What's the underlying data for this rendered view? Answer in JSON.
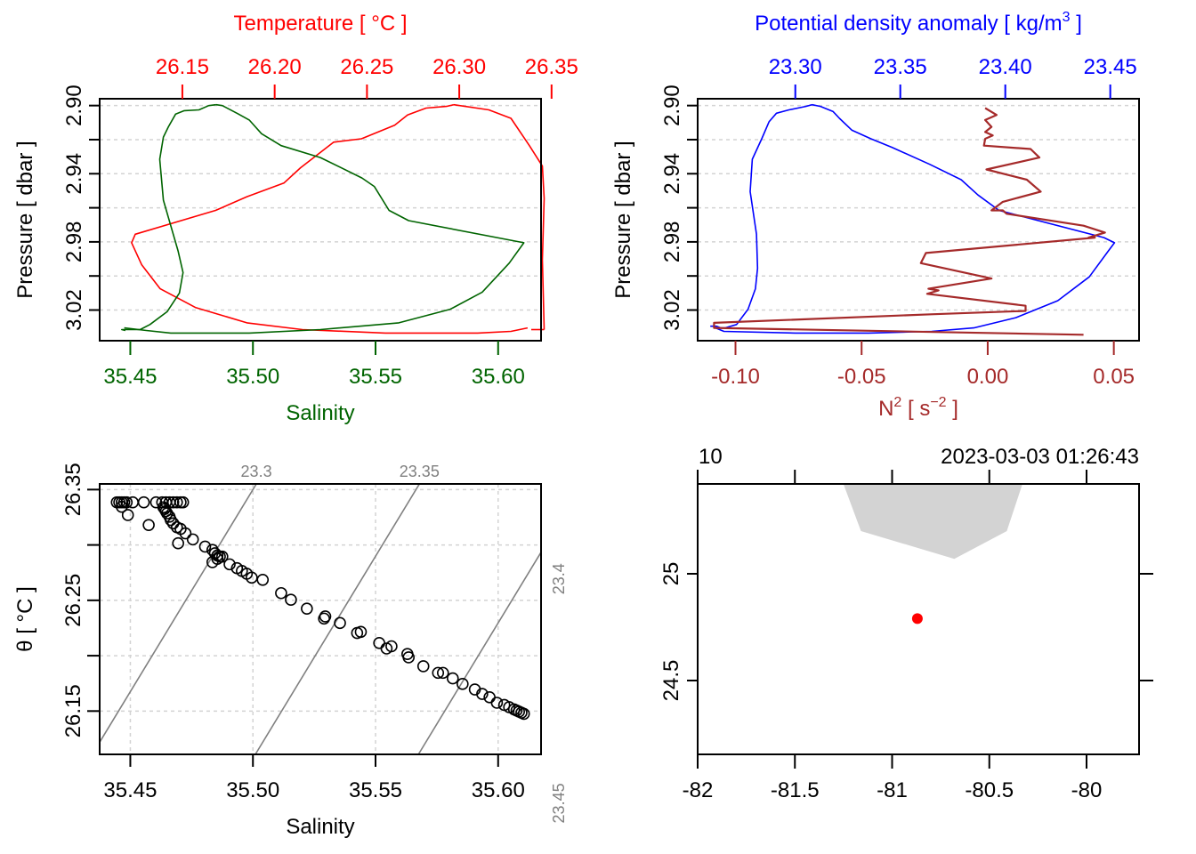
{
  "chart_data": [
    {
      "id": "profile_TS",
      "type": "line",
      "title": "",
      "top_axis_label": "Temperature [ °C ]",
      "bottom_axis_label": "Salinity",
      "ylabel": "Pressure [ dbar ]",
      "y_reversed": true,
      "ylim": [
        2.896,
        3.038
      ],
      "y_ticks": [
        "2.90",
        "2.94",
        "2.98",
        "3.02"
      ],
      "y_minor_ticks": [
        2.92,
        2.96,
        3.0
      ],
      "grid": true,
      "x_bottom": {
        "label": "Salinity",
        "color": "#006400",
        "ticks": [
          "35.45",
          "35.50",
          "35.55",
          "35.60"
        ],
        "lim": [
          35.4375,
          35.6175
        ]
      },
      "x_top": {
        "label": "Temperature [ °C ]",
        "color": "#ff0000",
        "ticks": [
          "26.15",
          "26.20",
          "26.25",
          "26.30",
          "26.35"
        ],
        "lim": [
          26.1052,
          26.3443
        ]
      },
      "series": [
        {
          "name": "Temperature",
          "axis": "top",
          "color": "#ff0000",
          "points": [
            [
              26.297,
              2.8995
            ],
            [
              26.293,
              2.9005
            ],
            [
              26.282,
              2.9015
            ],
            [
              26.272,
              2.9055
            ],
            [
              26.265,
              2.9115
            ],
            [
              26.247,
              2.9195
            ],
            [
              26.232,
              2.9215
            ],
            [
              26.214,
              2.9365
            ],
            [
              26.205,
              2.9455
            ],
            [
              26.185,
              2.9535
            ],
            [
              26.168,
              2.9615
            ],
            [
              26.1245,
              2.9755
            ],
            [
              26.1225,
              2.9805
            ],
            [
              26.128,
              2.9935
            ],
            [
              26.138,
              3.0075
            ],
            [
              26.157,
              3.0185
            ],
            [
              26.185,
              3.0275
            ],
            [
              26.215,
              3.0315
            ],
            [
              26.26,
              3.0335
            ],
            [
              26.31,
              3.0335
            ],
            [
              26.328,
              3.0325
            ],
            [
              26.337,
              3.0305
            ]
          ],
          "points_extra": [
            [
              26.316,
              2.9025
            ],
            [
              26.328,
              2.9075
            ],
            [
              26.338,
              2.9235
            ],
            [
              26.345,
              2.9355
            ],
            [
              26.346,
              2.9545
            ],
            [
              26.345,
              2.9905
            ],
            [
              26.346,
              3.0315
            ]
          ],
          "end_marker": [
            [
              26.339,
              3.0315
            ],
            [
              26.346,
              3.0315
            ]
          ]
        },
        {
          "name": "Salinity",
          "axis": "bottom",
          "color": "#006400",
          "points": [
            [
              35.485,
              2.8995
            ],
            [
              35.482,
              2.9
            ],
            [
              35.478,
              2.9025
            ],
            [
              35.472,
              2.903
            ],
            [
              35.4685,
              2.905
            ],
            [
              35.4655,
              2.9125
            ],
            [
              35.4635,
              2.9185
            ],
            [
              35.462,
              2.9315
            ],
            [
              35.4635,
              2.9555
            ],
            [
              35.4695,
              2.9855
            ],
            [
              35.4715,
              2.998
            ],
            [
              35.47,
              3.01
            ],
            [
              35.465,
              3.021
            ],
            [
              35.458,
              3.0285
            ],
            [
              35.454,
              3.0315
            ],
            [
              35.4465,
              3.0315
            ],
            [
              35.448,
              3.032
            ]
          ],
          "points_extra": [
            [
              35.4875,
              2.9
            ],
            [
              35.4935,
              2.9045
            ],
            [
              35.4985,
              2.9085
            ],
            [
              35.5035,
              2.9165
            ],
            [
              35.5115,
              2.9235
            ],
            [
              35.5275,
              2.9305
            ],
            [
              35.5445,
              2.9425
            ],
            [
              35.5495,
              2.9475
            ],
            [
              35.5555,
              2.9615
            ],
            [
              35.5635,
              2.9675
            ],
            [
              35.6105,
              2.9805
            ],
            [
              35.6045,
              2.9925
            ],
            [
              35.5935,
              3.0095
            ],
            [
              35.5805,
              3.0195
            ],
            [
              35.5595,
              3.0275
            ],
            [
              35.5275,
              3.0315
            ],
            [
              35.4985,
              3.0335
            ],
            [
              35.4665,
              3.0335
            ],
            [
              35.4565,
              3.032
            ],
            [
              35.4475,
              3.0305
            ]
          ]
        }
      ]
    },
    {
      "id": "profile_density_N2",
      "type": "line",
      "title": "",
      "top_axis_label": "Potential density anomaly [ kg/m^3 ]",
      "bottom_axis_label": "N^2 [ s^-2 ]",
      "ylabel": "Pressure [ dbar ]",
      "y_reversed": true,
      "ylim": [
        2.896,
        3.038
      ],
      "y_ticks": [
        "2.90",
        "2.94",
        "2.98",
        "3.02"
      ],
      "grid": true,
      "x_bottom": {
        "label": "N2 [ s-2 ]",
        "color": "#a52a2a",
        "ticks": [
          "-0.10",
          "-0.05",
          "0.00",
          "0.05"
        ],
        "lim": [
          -0.115,
          0.06
        ]
      },
      "x_top": {
        "label": "Potential density anomaly [ kg/m3 ]",
        "color": "#0000ff",
        "ticks": [
          "23.30",
          "23.35",
          "23.40",
          "23.45"
        ],
        "lim": [
          23.2535,
          23.4637
        ]
      },
      "series": [
        {
          "name": "Potential density anomaly",
          "axis": "top",
          "color": "#0000ff",
          "points": [
            [
              23.308,
              2.8995
            ],
            [
              23.305,
              2.9005
            ],
            [
              23.297,
              2.9025
            ],
            [
              23.291,
              2.9045
            ],
            [
              23.2875,
              2.9095
            ],
            [
              23.284,
              2.9195
            ],
            [
              23.2795,
              2.9315
            ],
            [
              23.2785,
              2.9505
            ],
            [
              23.2815,
              2.9755
            ],
            [
              23.282,
              2.9955
            ],
            [
              23.281,
              3.0075
            ],
            [
              23.2775,
              3.0195
            ],
            [
              23.272,
              3.0285
            ],
            [
              23.2665,
              3.0305
            ],
            [
              23.2645,
              3.0305
            ],
            [
              23.2625,
              3.0295
            ],
            [
              23.2595,
              3.0295
            ]
          ],
          "points_extra": [
            [
              23.312,
              2.9005
            ],
            [
              23.318,
              2.9035
            ],
            [
              23.321,
              2.9075
            ],
            [
              23.327,
              2.9145
            ],
            [
              23.336,
              2.9195
            ],
            [
              23.346,
              2.9245
            ],
            [
              23.364,
              2.9345
            ],
            [
              23.379,
              2.9435
            ],
            [
              23.387,
              2.9525
            ],
            [
              23.397,
              2.9615
            ],
            [
              23.447,
              2.9775
            ],
            [
              23.452,
              2.9805
            ],
            [
              23.449,
              2.9855
            ],
            [
              23.44,
              3.0005
            ],
            [
              23.425,
              3.0145
            ],
            [
              23.405,
              3.0245
            ],
            [
              23.385,
              3.0305
            ],
            [
              23.365,
              3.0325
            ],
            [
              23.335,
              3.0335
            ],
            [
              23.3,
              3.0335
            ],
            [
              23.266,
              3.0325
            ],
            [
              23.262,
              3.0305
            ]
          ]
        },
        {
          "name": "N2",
          "axis": "bottom",
          "color": "#a52a2a",
          "points": [
            [
              -0.001,
              2.9015
            ],
            [
              0.0035,
              2.9055
            ],
            [
              -0.001,
              2.9085
            ],
            [
              0.0015,
              2.9125
            ],
            [
              -0.001,
              2.9155
            ],
            [
              0.002,
              2.9175
            ],
            [
              -0.001,
              2.9195
            ],
            [
              -0.0015,
              2.9235
            ],
            [
              0.017,
              2.9255
            ],
            [
              0.0205,
              2.9305
            ],
            [
              -0.0005,
              2.9375
            ],
            [
              0.0155,
              2.9435
            ],
            [
              0.021,
              2.9505
            ],
            [
              0.006,
              2.9565
            ],
            [
              0.0015,
              2.9615
            ],
            [
              0.0025,
              2.9615
            ],
            [
              0.006,
              2.9615
            ],
            [
              0.0075,
              2.9635
            ],
            [
              0.038,
              2.9705
            ],
            [
              0.0465,
              2.9745
            ],
            [
              0.04,
              2.9775
            ],
            [
              0.0425,
              2.9775
            ],
            [
              -0.0245,
              2.9865
            ],
            [
              -0.0265,
              2.9925
            ],
            [
              0.0015,
              3.0015
            ],
            [
              -0.0235,
              3.0075
            ],
            [
              -0.0195,
              3.0085
            ],
            [
              -0.024,
              3.0105
            ],
            [
              0.015,
              3.0175
            ],
            [
              0.015,
              3.0205
            ],
            [
              -0.0225,
              3.0225
            ],
            [
              -0.1085,
              3.0275
            ],
            [
              -0.1085,
              3.0305
            ],
            [
              0.038,
              3.0345
            ]
          ]
        }
      ]
    },
    {
      "id": "TS_diagram",
      "type": "scatter",
      "title": "",
      "xlabel": "Salinity",
      "ylabel": "θ [ °C ]",
      "xlim": [
        35.4375,
        35.6175
      ],
      "ylim": [
        26.1109,
        26.3551
      ],
      "x_ticks": [
        "35.45",
        "35.50",
        "35.55",
        "35.60"
      ],
      "y_ticks": [
        "26.15",
        "26.25",
        "26.35"
      ],
      "y_minor_ticks": [
        26.2,
        26.3
      ],
      "grid": true,
      "isopycnals": [
        {
          "label": "23.3",
          "value": 23.3,
          "label_side": "top"
        },
        {
          "label": "23.35",
          "value": 23.35,
          "label_side": "top"
        },
        {
          "label": "23.4",
          "value": 23.4,
          "label_side": "right"
        },
        {
          "label": "23.45",
          "value": 23.45,
          "label_side": "right"
        }
      ],
      "isopycnal_color": "#808080",
      "points": [
        [
          35.4445,
          26.3385
        ],
        [
          35.4455,
          26.3385
        ],
        [
          35.4465,
          26.3385
        ],
        [
          35.4475,
          26.3385
        ],
        [
          35.4485,
          26.3385
        ],
        [
          35.451,
          26.3385
        ],
        [
          35.4555,
          26.3385
        ],
        [
          35.4605,
          26.3385
        ],
        [
          35.463,
          26.3385
        ],
        [
          35.4645,
          26.3385
        ],
        [
          35.466,
          26.3385
        ],
        [
          35.4675,
          26.3385
        ],
        [
          35.469,
          26.3385
        ],
        [
          35.4705,
          26.3385
        ],
        [
          35.4715,
          26.3385
        ],
        [
          35.4465,
          26.3345
        ],
        [
          35.449,
          26.327
        ],
        [
          35.4575,
          26.318
        ],
        [
          35.4635,
          26.334
        ],
        [
          35.464,
          26.3325
        ],
        [
          35.4645,
          26.3305
        ],
        [
          35.465,
          26.3285
        ],
        [
          35.466,
          26.3255
        ],
        [
          35.4665,
          26.3225
        ],
        [
          35.4675,
          26.3195
        ],
        [
          35.469,
          26.316
        ],
        [
          35.4705,
          26.3145
        ],
        [
          35.4725,
          26.3105
        ],
        [
          35.4755,
          26.305
        ],
        [
          35.4695,
          26.3015
        ],
        [
          35.4805,
          26.2985
        ],
        [
          35.4835,
          26.2955
        ],
        [
          35.4845,
          26.2925
        ],
        [
          35.4855,
          26.2905
        ],
        [
          35.4865,
          26.2895
        ],
        [
          35.4875,
          26.2895
        ],
        [
          35.4855,
          26.2875
        ],
        [
          35.4835,
          26.2845
        ],
        [
          35.4905,
          26.2825
        ],
        [
          35.4935,
          26.279
        ],
        [
          35.4955,
          26.2765
        ],
        [
          35.4975,
          26.274
        ],
        [
          35.4995,
          26.2705
        ],
        [
          35.504,
          26.2685
        ],
        [
          35.5115,
          26.2565
        ],
        [
          35.5155,
          26.2505
        ],
        [
          35.522,
          26.2425
        ],
        [
          35.529,
          26.2335
        ],
        [
          35.5295,
          26.2355
        ],
        [
          35.5355,
          26.2295
        ],
        [
          35.5425,
          26.2205
        ],
        [
          35.544,
          26.2215
        ],
        [
          35.5515,
          26.2115
        ],
        [
          35.5545,
          26.2065
        ],
        [
          35.5565,
          26.2085
        ],
        [
          35.563,
          26.2015
        ],
        [
          35.5635,
          26.1985
        ],
        [
          35.5695,
          26.1905
        ],
        [
          35.5755,
          26.1845
        ],
        [
          35.5775,
          26.1845
        ],
        [
          35.5815,
          26.1795
        ],
        [
          35.5855,
          26.1745
        ],
        [
          35.5905,
          26.1695
        ],
        [
          35.5935,
          26.1655
        ],
        [
          35.5965,
          26.1625
        ],
        [
          35.5995,
          26.1575
        ],
        [
          35.6025,
          26.1555
        ],
        [
          35.6045,
          26.1535
        ],
        [
          35.6065,
          26.1515
        ],
        [
          35.6075,
          26.1505
        ],
        [
          35.6085,
          26.1495
        ],
        [
          35.6095,
          26.1485
        ],
        [
          35.6105,
          26.1475
        ]
      ]
    },
    {
      "id": "station_map",
      "type": "scatter",
      "title": "",
      "top_labels": {
        "left": "10",
        "right": "2023-03-03 01:26:43"
      },
      "xlim": [
        -82.0,
        -79.73
      ],
      "ylim": [
        24.16,
        25.42
      ],
      "x_ticks": [
        "-82",
        "-81.5",
        "-81",
        "-80.5",
        "-80"
      ],
      "y_ticks": [
        "24.5",
        "25"
      ],
      "land_color": "#d3d3d3",
      "land_polygon": [
        [
          -81.25,
          25.42
        ],
        [
          -81.16,
          25.2
        ],
        [
          -80.68,
          25.07
        ],
        [
          -80.41,
          25.2
        ],
        [
          -80.33,
          25.42
        ]
      ],
      "station": {
        "lon": -80.87,
        "lat": 24.79,
        "color": "#ff0000"
      }
    }
  ]
}
